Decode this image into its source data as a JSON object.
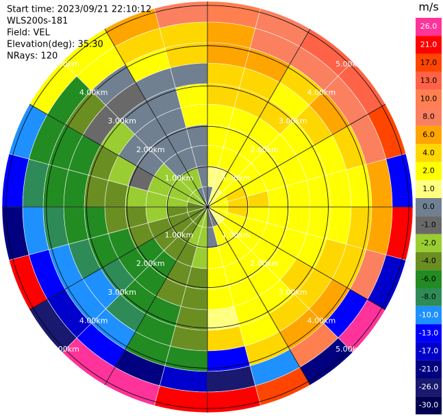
{
  "chart_data": {
    "type": "ppi",
    "header": [
      "Start time: 2023/09/21 22:10:12",
      "WLS200s-181",
      "Field: VEL",
      "Elevation(deg): 35.30",
      "NRays: 120"
    ],
    "rlim": [
      0,
      5.1
    ],
    "rings": [
      {
        "value": 1,
        "label": "1.00km"
      },
      {
        "value": 2,
        "label": "2.00km"
      },
      {
        "value": 3,
        "label": "3.00km"
      },
      {
        "value": 4,
        "label": "4.00km"
      },
      {
        "value": 5,
        "label": "5.00km"
      }
    ],
    "values": [
      [
        0,
        1,
        2,
        2,
        2,
        4,
        4,
        6,
        6,
        10
      ],
      [
        1,
        1,
        2,
        2,
        2,
        4,
        4,
        6,
        8,
        8
      ],
      [
        1,
        2,
        2,
        2,
        2,
        4,
        2,
        4,
        8,
        13
      ],
      [
        2,
        2,
        2,
        2,
        2,
        2,
        4,
        6,
        8,
        13
      ],
      [
        2,
        4,
        2,
        2,
        2,
        2,
        2,
        4,
        8,
        17
      ],
      [
        2,
        4,
        4,
        2,
        2,
        2,
        2,
        2,
        6,
        -13
      ],
      [
        2,
        4,
        2,
        2,
        2,
        2,
        2,
        4,
        6,
        21
      ],
      [
        2,
        2,
        2,
        2,
        2,
        2,
        4,
        4,
        8,
        -17
      ],
      [
        1,
        2,
        2,
        2,
        2,
        4,
        4,
        6,
        -13,
        26
      ],
      [
        1,
        2,
        2,
        2,
        2,
        2,
        4,
        6,
        10,
        -21
      ],
      [
        0,
        2,
        2,
        2,
        2,
        2,
        2,
        4,
        -10,
        17
      ],
      [
        -1,
        0,
        2,
        2,
        2,
        1,
        4,
        -13,
        -26,
        21
      ],
      [
        -2,
        -2,
        -2,
        -4,
        -4,
        -4,
        -4,
        -6,
        -17,
        21
      ],
      [
        -2,
        -2,
        -4,
        -4,
        -4,
        -6,
        -6,
        -6,
        -21,
        26
      ],
      [
        -4,
        -4,
        -4,
        -6,
        -6,
        -6,
        -8,
        -10,
        -13,
        26
      ],
      [
        -4,
        -4,
        -4,
        -6,
        -6,
        -8,
        -10,
        -10,
        -17,
        -26
      ],
      [
        -4,
        -4,
        -4,
        -4,
        -6,
        -6,
        -8,
        -10,
        -13,
        21
      ],
      [
        -4,
        -4,
        -2,
        -4,
        -4,
        -6,
        -6,
        -8,
        -10,
        -21
      ],
      [
        -4,
        -2,
        -2,
        -2,
        -4,
        -4,
        -6,
        -6,
        -8,
        -13
      ],
      [
        -2,
        -2,
        -2,
        -1,
        -2,
        -4,
        -6,
        -6,
        -6,
        -10
      ],
      [
        -2,
        -2,
        -2,
        0,
        0,
        -2,
        -1,
        -4,
        -6,
        2
      ],
      [
        -2,
        -2,
        0,
        0,
        0,
        0,
        -1,
        0,
        2,
        2
      ],
      [
        0,
        -2,
        0,
        0,
        0,
        0,
        0,
        2,
        4,
        6
      ],
      [
        0,
        0,
        0,
        0,
        2,
        2,
        0,
        4,
        4,
        8
      ]
    ],
    "colorbar": {
      "unit": "m/s",
      "ticks": [
        {
          "value": 26,
          "label": "26.0"
        },
        {
          "value": 21,
          "label": "21.0"
        },
        {
          "value": 17,
          "label": "17.0"
        },
        {
          "value": 13,
          "label": "13.0"
        },
        {
          "value": 10,
          "label": "10.0"
        },
        {
          "value": 8,
          "label": "8.0"
        },
        {
          "value": 6,
          "label": "6.0"
        },
        {
          "value": 4,
          "label": "4.0"
        },
        {
          "value": 2,
          "label": "2.0"
        },
        {
          "value": 1,
          "label": "1.0"
        },
        {
          "value": 0,
          "label": "0.0"
        },
        {
          "value": -1,
          "label": "-1.0"
        },
        {
          "value": -2,
          "label": "-2.0"
        },
        {
          "value": -4,
          "label": "-4.0"
        },
        {
          "value": -6,
          "label": "-6.0"
        },
        {
          "value": -8,
          "label": "-8.0"
        },
        {
          "value": -10,
          "label": "-10.0"
        },
        {
          "value": -13,
          "label": "-13.0"
        },
        {
          "value": -17,
          "label": "-17.0"
        },
        {
          "value": -21,
          "label": "-21.0"
        },
        {
          "value": -26,
          "label": "-26.0"
        },
        {
          "value": -30,
          "label": "-30.0"
        }
      ],
      "colors": [
        "#ff3399",
        "#ff0000",
        "#ff4500",
        "#ff6347",
        "#ff7f50",
        "#fa8060",
        "#ffa500",
        "#ffd700",
        "#ffff00",
        "#ffff80",
        "#708090",
        "#696969",
        "#9acd32",
        "#6b8e23",
        "#228b22",
        "#2e8b57",
        "#1e90ff",
        "#0000ff",
        "#0000cd",
        "#000080",
        "#191970",
        "#000050"
      ]
    }
  }
}
